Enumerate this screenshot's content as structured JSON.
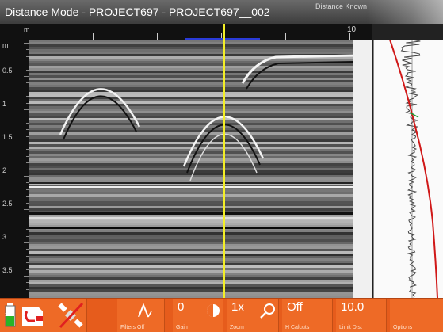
{
  "window": {
    "title": "Distance Mode - PROJECT697 - PROJECT697__002",
    "status": "Distance Known"
  },
  "ruler": {
    "unit": "m",
    "end_label": "10"
  },
  "depth_axis": {
    "labels": [
      "m",
      "0.5",
      "1",
      "1.5",
      "2",
      "2.5",
      "3",
      "3.5"
    ]
  },
  "toolbar": {
    "battery_label": "100",
    "filter_label": "Filters Off",
    "gain_value": "0",
    "gain_label": "Gain",
    "zoom_value": "1x",
    "zoom_label": "Zoom",
    "cal_value": "Off",
    "cal_label": "H Calcuts",
    "limit_value": "10.0",
    "limit_label": "Limit Dist",
    "options_label": "Options"
  },
  "colors": {
    "toolbar": "#e65c1c",
    "cursor": "#f3ee27",
    "trace_curve": "#d01818"
  }
}
